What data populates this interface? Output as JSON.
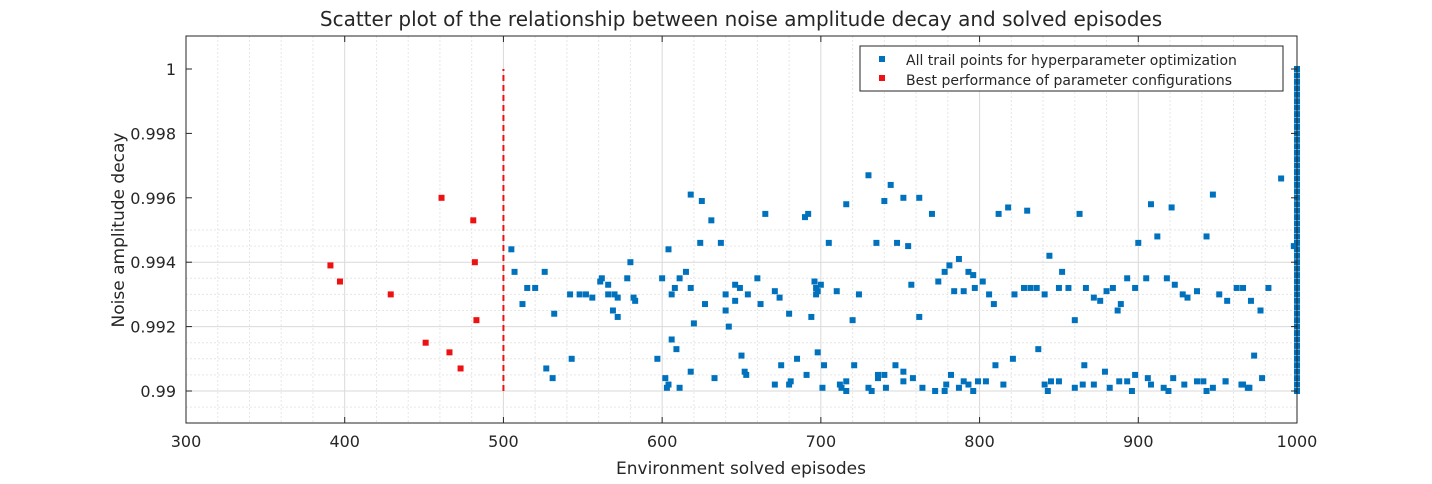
{
  "chart_data": {
    "type": "scatter",
    "title": "Scatter plot of the relationship between noise amplitude decay and solved episodes",
    "xlabel": "Environment solved episodes",
    "ylabel": "Noise amplitude decay",
    "xlim": [
      300,
      1000
    ],
    "ylim": [
      0.989,
      0.9995
    ],
    "ylim_top": 1.001,
    "x_ticks": [
      "300",
      "400",
      "500",
      "600",
      "700",
      "800",
      "900",
      "1000"
    ],
    "y_ticks": [
      "0.99",
      "0.992",
      "0.994",
      "0.996",
      "0.998",
      "1"
    ],
    "grid": true,
    "legend_position": "top-right",
    "threshold_line": {
      "x": 500,
      "y_range": [
        0.99,
        1.0
      ],
      "color": "#ee1111",
      "style": "dashed"
    },
    "colors": {
      "all": "#0072bd",
      "best": "#ee1111"
    },
    "series": [
      {
        "name": "All trail points for hyperparameter optimization",
        "color": "#0072bd",
        "x": [
          505,
          507,
          512,
          515,
          520,
          526,
          532,
          542,
          552,
          556,
          562,
          566,
          569,
          572,
          578,
          580,
          582,
          583,
          597,
          600,
          604,
          606,
          608,
          611,
          615,
          618,
          618,
          624,
          625,
          627,
          631,
          637,
          640,
          642,
          646,
          649,
          654,
          660,
          665,
          674,
          680,
          690,
          692,
          694,
          696,
          697,
          698,
          700,
          705,
          710,
          716,
          720,
          724,
          730,
          735,
          740,
          744,
          748,
          752,
          755,
          757,
          762,
          770,
          774,
          778,
          781,
          784,
          787,
          790,
          793,
          797,
          802,
          806,
          809,
          812,
          818,
          822,
          828,
          830,
          832,
          836,
          841,
          844,
          850,
          852,
          856,
          860,
          863,
          867,
          872,
          876,
          880,
          884,
          889,
          893,
          898,
          900,
          905,
          908,
          912,
          918,
          921,
          923,
          928,
          931,
          937,
          943,
          947,
          951,
          956,
          962,
          966,
          971,
          977,
          982,
          527,
          531,
          543,
          548,
          561,
          566,
          570,
          572,
          602,
          606,
          609,
          611,
          618,
          620,
          633,
          646,
          650,
          652,
          662,
          671,
          675,
          680,
          685,
          691,
          697,
          702,
          713,
          721,
          730,
          736,
          740,
          747,
          752,
          758,
          762,
          772,
          778,
          782,
          790,
          793,
          796,
          804,
          810,
          815,
          837,
          845,
          850,
          860,
          866,
          872,
          879,
          887,
          893,
          898,
          908,
          916,
          922,
          937,
          947,
          955,
          966,
          973,
          603,
          604,
          640,
          653,
          671,
          681,
          698,
          701,
          712,
          716,
          716,
          732,
          736,
          741,
          752,
          764,
          779,
          787,
          796,
          799,
          821,
          841,
          843,
          865,
          882,
          888,
          896,
          906,
          919,
          929,
          941,
          943,
          955,
          965,
          969,
          970,
          978,
          1000,
          1000,
          1000,
          1000,
          1000,
          1000,
          1000,
          1000,
          1000,
          1000,
          1000,
          1000,
          1000,
          1000,
          1000,
          1000,
          1000,
          1000,
          1000,
          1000,
          1000,
          1000,
          1000,
          1000,
          1000,
          1000,
          1000,
          1000,
          1000,
          1000,
          1000,
          1000,
          1000,
          1000,
          1000,
          1000,
          1000,
          1000,
          1000,
          1000,
          1000,
          1000,
          1000,
          1000,
          1000,
          1000,
          1000,
          1000,
          1000,
          1000,
          1000,
          1000,
          998,
          990
        ],
        "y": [
          0.9944,
          0.9937,
          0.9927,
          0.9932,
          0.9932,
          0.9937,
          0.9924,
          0.993,
          0.993,
          0.9929,
          0.9935,
          0.9933,
          0.9925,
          0.9923,
          0.9935,
          0.994,
          0.9929,
          0.9928,
          0.991,
          0.9935,
          0.9944,
          0.993,
          0.9932,
          0.9935,
          0.9937,
          0.9932,
          0.9961,
          0.9946,
          0.9959,
          0.9927,
          0.9953,
          0.9946,
          0.993,
          0.992,
          0.9933,
          0.9932,
          0.993,
          0.9935,
          0.9955,
          0.9929,
          0.9924,
          0.9954,
          0.9955,
          0.9923,
          0.9934,
          0.9932,
          0.9931,
          0.9933,
          0.9946,
          0.9931,
          0.9958,
          0.9922,
          0.993,
          0.9967,
          0.9946,
          0.9959,
          0.9964,
          0.9946,
          0.996,
          0.9945,
          0.9933,
          0.996,
          0.9955,
          0.9934,
          0.9937,
          0.9939,
          0.9931,
          0.9941,
          0.9931,
          0.9937,
          0.9932,
          0.9934,
          0.993,
          0.9927,
          0.9955,
          0.9957,
          0.993,
          0.9932,
          0.9956,
          0.9932,
          0.9932,
          0.993,
          0.9942,
          0.9932,
          0.9937,
          0.9932,
          0.9922,
          0.9955,
          0.9932,
          0.9929,
          0.9928,
          0.9931,
          0.9932,
          0.9927,
          0.9935,
          0.9932,
          0.9946,
          0.9935,
          0.9958,
          0.9948,
          0.9935,
          0.9957,
          0.9933,
          0.993,
          0.9929,
          0.9931,
          0.9948,
          0.9961,
          0.993,
          0.9928,
          0.9932,
          0.9932,
          0.9928,
          0.9925,
          0.9932,
          0.9907,
          0.9904,
          0.991,
          0.993,
          0.9934,
          0.993,
          0.993,
          0.9929,
          0.9904,
          0.9916,
          0.9913,
          0.9901,
          0.9906,
          0.9921,
          0.9904,
          0.9928,
          0.9911,
          0.9906,
          0.9927,
          0.9931,
          0.9908,
          0.9902,
          0.991,
          0.9905,
          0.993,
          0.9908,
          0.9901,
          0.9908,
          0.9901,
          0.9904,
          0.9905,
          0.9908,
          0.9906,
          0.9904,
          0.9923,
          0.99,
          0.99,
          0.9905,
          0.9903,
          0.9902,
          0.9936,
          0.9903,
          0.9908,
          0.9902,
          0.9913,
          0.9903,
          0.9903,
          0.9901,
          0.9908,
          0.9902,
          0.9906,
          0.9925,
          0.9903,
          0.9905,
          0.9902,
          0.9901,
          0.9904,
          0.9903,
          0.9901,
          0.9903,
          0.9902,
          0.9911,
          0.9901,
          0.9902,
          0.9925,
          0.9905,
          0.9902,
          0.9903,
          0.9912,
          0.9901,
          0.9902,
          0.9903,
          0.99,
          0.99,
          0.9905,
          0.9901,
          0.9903,
          0.9901,
          0.9902,
          0.9901,
          0.99,
          0.9903,
          0.991,
          0.9902,
          0.99,
          0.9902,
          0.9901,
          0.9903,
          0.99,
          0.9904,
          0.99,
          0.9902,
          0.9903,
          0.99,
          0.9903,
          0.9902,
          0.9901,
          0.9901,
          0.9904,
          0.99,
          0.9902,
          0.9904,
          0.9906,
          0.9908,
          0.991,
          0.9912,
          0.9914,
          0.9916,
          0.9918,
          0.992,
          0.9922,
          0.9924,
          0.9926,
          0.9928,
          0.993,
          0.9932,
          0.9934,
          0.9936,
          0.9938,
          0.994,
          0.9942,
          0.9944,
          0.9946,
          0.9948,
          0.995,
          0.9952,
          0.9954,
          0.9956,
          0.9958,
          0.996,
          0.9962,
          0.9964,
          0.9966,
          0.9968,
          0.997,
          0.9972,
          0.9974,
          0.9976,
          0.9978,
          0.998,
          0.9982,
          0.9984,
          0.9986,
          0.9988,
          0.999,
          0.9992,
          0.9994,
          0.9996,
          0.9998,
          1.0,
          1.0,
          0.9945,
          0.9966
        ]
      },
      {
        "name": "Best performance of parameter configurations",
        "color": "#ee1111",
        "x": [
          391,
          397,
          429,
          451,
          461,
          466,
          473,
          481,
          482,
          483
        ],
        "y": [
          0.9939,
          0.9934,
          0.993,
          0.9915,
          0.996,
          0.9912,
          0.9907,
          0.9953,
          0.994,
          0.9922
        ]
      }
    ]
  }
}
